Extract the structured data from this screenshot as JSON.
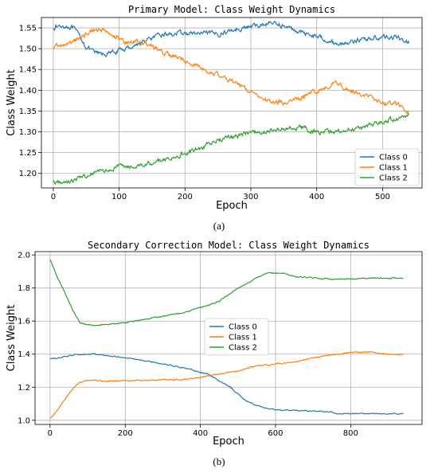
{
  "chart_data": [
    {
      "type": "line",
      "subfig_label": "(a)",
      "title": "Primary Model: Class Weight Dynamics",
      "xlabel": "Epoch",
      "ylabel": "Class Weight",
      "xlim": [
        -18,
        560
      ],
      "ylim": [
        1.165,
        1.575
      ],
      "xticks": [
        0,
        100,
        200,
        300,
        400,
        500
      ],
      "yticks": [
        1.2,
        1.25,
        1.3,
        1.35,
        1.4,
        1.45,
        1.5,
        1.55
      ],
      "ytick_labels": [
        "1.20",
        "1.25",
        "1.30",
        "1.35",
        "1.40",
        "1.45",
        "1.50",
        "1.55"
      ],
      "grid": true,
      "legend_position": "lower-right",
      "noise": 0.004,
      "series": [
        {
          "name": "Class 0",
          "color": "#1f77b4",
          "x": [
            0,
            20,
            30,
            40,
            50,
            60,
            70,
            80,
            100,
            110,
            130,
            150,
            170,
            200,
            250,
            280,
            300,
            320,
            330,
            340,
            360,
            400,
            420,
            430,
            460,
            480,
            500,
            520,
            540
          ],
          "y": [
            1.552,
            1.555,
            1.55,
            1.53,
            1.505,
            1.492,
            1.488,
            1.487,
            1.495,
            1.5,
            1.512,
            1.525,
            1.535,
            1.537,
            1.535,
            1.548,
            1.553,
            1.558,
            1.563,
            1.56,
            1.548,
            1.53,
            1.52,
            1.51,
            1.52,
            1.525,
            1.528,
            1.528,
            1.515
          ]
        },
        {
          "name": "Class 1",
          "color": "#ff7f0e",
          "x": [
            0,
            20,
            40,
            60,
            70,
            80,
            100,
            110,
            130,
            150,
            170,
            200,
            230,
            260,
            280,
            300,
            320,
            340,
            360,
            380,
            400,
            420,
            430,
            440,
            460,
            480,
            500,
            520,
            530,
            540
          ],
          "y": [
            1.505,
            1.51,
            1.525,
            1.545,
            1.548,
            1.54,
            1.525,
            1.515,
            1.52,
            1.505,
            1.49,
            1.47,
            1.45,
            1.43,
            1.415,
            1.395,
            1.378,
            1.372,
            1.37,
            1.385,
            1.398,
            1.412,
            1.418,
            1.41,
            1.395,
            1.385,
            1.368,
            1.368,
            1.36,
            1.345
          ]
        },
        {
          "name": "Class 2",
          "color": "#2ca02c",
          "x": [
            0,
            25,
            40,
            60,
            80,
            100,
            130,
            150,
            180,
            200,
            230,
            250,
            280,
            300,
            320,
            340,
            360,
            380,
            400,
            420,
            440,
            460,
            480,
            500,
            520,
            530,
            540
          ],
          "y": [
            1.18,
            1.18,
            1.19,
            1.2,
            1.208,
            1.217,
            1.22,
            1.225,
            1.24,
            1.248,
            1.265,
            1.28,
            1.29,
            1.3,
            1.3,
            1.305,
            1.31,
            1.31,
            1.298,
            1.3,
            1.303,
            1.307,
            1.318,
            1.325,
            1.33,
            1.337,
            1.345
          ]
        }
      ]
    },
    {
      "type": "line",
      "subfig_label": "(b)",
      "title": "Secondary Correction Model: Class Weight Dynamics",
      "xlabel": "Epoch",
      "ylabel": "Class Weight",
      "xlim": [
        -40,
        990
      ],
      "ylim": [
        0.975,
        2.02
      ],
      "xticks": [
        0,
        200,
        400,
        600,
        800
      ],
      "yticks": [
        1.0,
        1.2,
        1.4,
        1.6,
        1.8,
        2.0
      ],
      "ytick_labels": [
        "1.0",
        "1.2",
        "1.4",
        "1.6",
        "1.8",
        "2.0"
      ],
      "grid": true,
      "legend_position": "center",
      "noise": 0.0025,
      "series": [
        {
          "name": "Class 0",
          "color": "#1f77b4",
          "x": [
            0,
            30,
            50,
            70,
            90,
            120,
            150,
            200,
            250,
            300,
            350,
            400,
            420,
            450,
            480,
            500,
            520,
            550,
            580,
            620,
            660,
            700,
            750,
            760,
            800,
            850,
            900,
            940
          ],
          "y": [
            1.37,
            1.38,
            1.39,
            1.4,
            1.4,
            1.4,
            1.39,
            1.38,
            1.36,
            1.34,
            1.32,
            1.29,
            1.28,
            1.24,
            1.2,
            1.16,
            1.12,
            1.09,
            1.07,
            1.06,
            1.06,
            1.055,
            1.05,
            1.04,
            1.04,
            1.04,
            1.04,
            1.04
          ]
        },
        {
          "name": "Class 1",
          "color": "#ff7f0e",
          "x": [
            0,
            20,
            40,
            60,
            80,
            100,
            120,
            150,
            200,
            250,
            300,
            350,
            400,
            450,
            500,
            550,
            600,
            650,
            700,
            750,
            800,
            850,
            900,
            940
          ],
          "y": [
            1.01,
            1.06,
            1.13,
            1.19,
            1.23,
            1.24,
            1.24,
            1.235,
            1.24,
            1.24,
            1.245,
            1.245,
            1.26,
            1.28,
            1.3,
            1.33,
            1.34,
            1.35,
            1.38,
            1.395,
            1.41,
            1.415,
            1.4,
            1.4
          ]
        },
        {
          "name": "Class 2",
          "color": "#2ca02c",
          "x": [
            0,
            10,
            20,
            40,
            60,
            80,
            100,
            120,
            150,
            200,
            250,
            300,
            350,
            400,
            450,
            500,
            550,
            580,
            600,
            620,
            650,
            700,
            750,
            800,
            850,
            900,
            940
          ],
          "y": [
            1.97,
            1.92,
            1.86,
            1.77,
            1.67,
            1.59,
            1.58,
            1.575,
            1.58,
            1.59,
            1.61,
            1.63,
            1.65,
            1.68,
            1.72,
            1.8,
            1.86,
            1.89,
            1.89,
            1.89,
            1.87,
            1.86,
            1.855,
            1.855,
            1.86,
            1.86,
            1.86
          ]
        }
      ]
    }
  ]
}
